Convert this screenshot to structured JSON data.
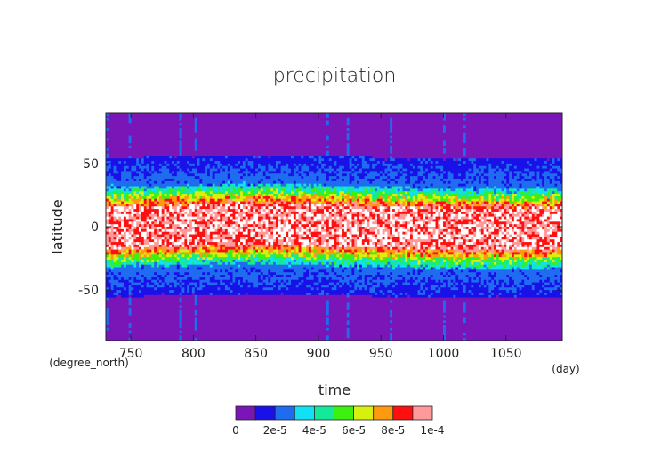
{
  "chart_data": {
    "type": "heatmap",
    "title": "precipitation",
    "xlabel": "time",
    "ylabel": "latitude",
    "x_unit": "(day)",
    "y_unit": "(degree_north)",
    "xlim": [
      730,
      1095
    ],
    "ylim": [
      -90,
      90
    ],
    "x_ticks": [
      750,
      800,
      850,
      900,
      950,
      1000,
      1050
    ],
    "y_ticks": [
      -50,
      0,
      50
    ],
    "colorbar": {
      "levels": [
        0,
        1e-05,
        2e-05,
        3e-05,
        4e-05,
        5e-05,
        6e-05,
        7e-05,
        8e-05,
        9e-05,
        0.0001
      ],
      "tick_labels": [
        "0",
        "2e-5",
        "4e-5",
        "6e-5",
        "8e-5",
        "1e-4"
      ],
      "colors": [
        "#7a16b8",
        "#1a10e8",
        "#1f6cf0",
        "#13e0f5",
        "#14e89a",
        "#3cf010",
        "#d8f010",
        "#ff9a10",
        "#ff1010",
        "#ff9a9a"
      ],
      "above_max_color": "#ffffff"
    },
    "profile_note_values": {
      "dry_lat_beyond": 55,
      "storm_track_lat": 45,
      "wet_band_halfwidth_lat": 20
    }
  }
}
